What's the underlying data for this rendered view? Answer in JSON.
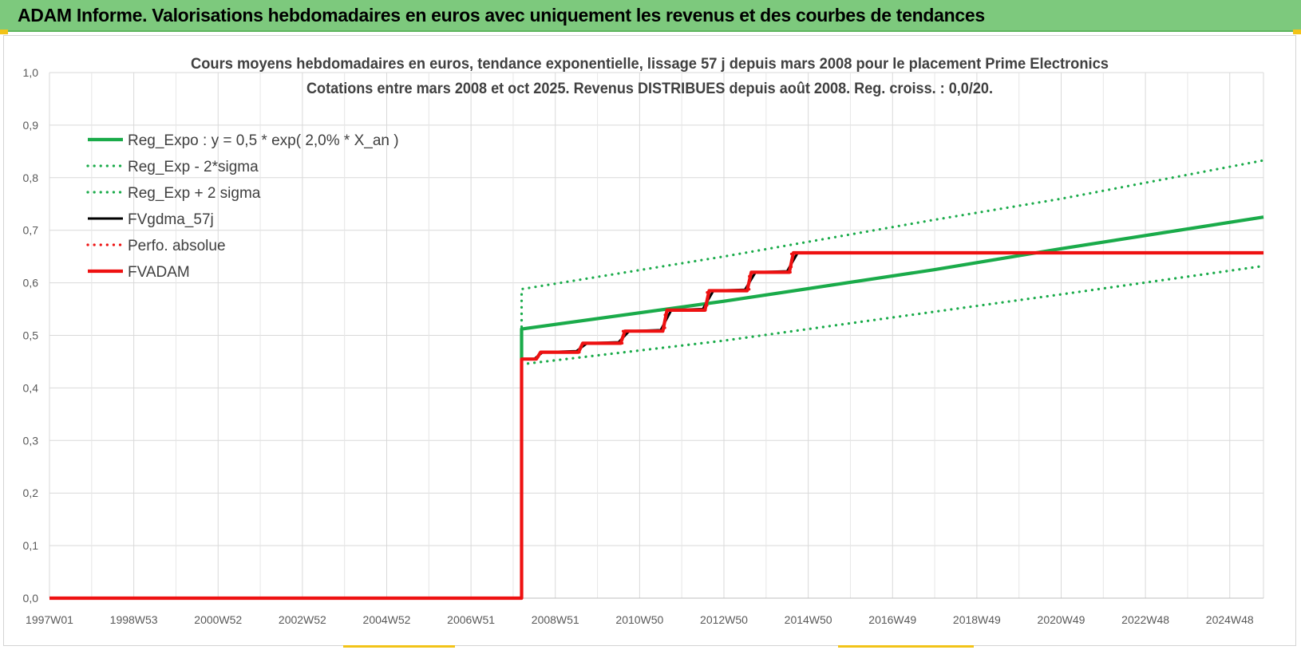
{
  "header": {
    "title": "ADAM Informe. Valorisations hebdomadaires en euros avec uniquement les revenus et des courbes de tendances"
  },
  "colors": {
    "header_bg": "#7dc97d",
    "green": "#1aab4a",
    "red": "#ee1111",
    "black": "#000000",
    "accent": "#f2c318"
  },
  "chart_data": {
    "type": "line",
    "title": "Cours moyens hebdomadaires en euros, tendance exponentielle, lissage 57 j depuis mars 2008 pour le placement Prime Electronics",
    "subtitle": "Cotations entre mars 2008 et oct 2025. Revenus DISTRIBUES depuis août 2008. Reg. croiss. : 0,0/20.",
    "xlabel": "",
    "ylabel": "",
    "x_tick_labels": [
      "1997W01",
      "1998W53",
      "2000W52",
      "2002W52",
      "2004W52",
      "2006W51",
      "2008W51",
      "2010W50",
      "2012W50",
      "2014W50",
      "2016W49",
      "2018W49",
      "2020W49",
      "2022W48",
      "2024W48"
    ],
    "x_tick_years": [
      1997.0,
      1999.0,
      2001.0,
      2003.0,
      2005.0,
      2007.0,
      2009.0,
      2011.0,
      2013.0,
      2015.0,
      2017.0,
      2019.0,
      2021.0,
      2023.0,
      2025.0
    ],
    "xlim": [
      1997.0,
      2025.8
    ],
    "ylim": [
      0.0,
      1.0
    ],
    "y_tick_labels": [
      "0,0",
      "0,1",
      "0,2",
      "0,3",
      "0,4",
      "0,5",
      "0,6",
      "0,7",
      "0,8",
      "0,9",
      "1,0"
    ],
    "y_tick_values": [
      0.0,
      0.1,
      0.2,
      0.3,
      0.4,
      0.5,
      0.6,
      0.7,
      0.8,
      0.9,
      1.0
    ],
    "grid": true,
    "legend_position": "top-left",
    "series": [
      {
        "name": "Reg_Expo : y = 0,5 * exp( 2,0% *  X_an )",
        "color": "#1aab4a",
        "style": "solid",
        "points": [
          [
            2008.2,
            0.455
          ],
          [
            2008.2,
            0.512
          ],
          [
            2013.0,
            0.565
          ],
          [
            2018.0,
            0.625
          ],
          [
            2021.0,
            0.665
          ],
          [
            2025.8,
            0.725
          ]
        ]
      },
      {
        "name": "Reg_Exp - 2*sigma",
        "color": "#1aab4a",
        "style": "dotted",
        "points": [
          [
            2008.2,
            0.445
          ],
          [
            2013.0,
            0.49
          ],
          [
            2018.0,
            0.545
          ],
          [
            2021.0,
            0.578
          ],
          [
            2025.8,
            0.632
          ]
        ]
      },
      {
        "name": "Reg_Exp + 2 sigma",
        "color": "#1aab4a",
        "style": "dotted",
        "points": [
          [
            2008.2,
            0.455
          ],
          [
            2008.2,
            0.588
          ],
          [
            2013.0,
            0.65
          ],
          [
            2018.0,
            0.72
          ],
          [
            2021.0,
            0.76
          ],
          [
            2025.8,
            0.833
          ]
        ]
      },
      {
        "name": "FVgdma_57j",
        "color": "#000000",
        "style": "solid",
        "points": [
          [
            2008.2,
            0.455
          ],
          [
            2008.5,
            0.455
          ],
          [
            2008.7,
            0.468
          ],
          [
            2009.5,
            0.47
          ],
          [
            2009.75,
            0.485
          ],
          [
            2010.5,
            0.487
          ],
          [
            2010.75,
            0.508
          ],
          [
            2011.5,
            0.51
          ],
          [
            2011.75,
            0.548
          ],
          [
            2012.5,
            0.55
          ],
          [
            2012.75,
            0.585
          ],
          [
            2013.5,
            0.587
          ],
          [
            2013.75,
            0.62
          ],
          [
            2014.5,
            0.622
          ],
          [
            2014.75,
            0.657
          ],
          [
            2025.8,
            0.657
          ]
        ]
      },
      {
        "name": "Perfo. absolue",
        "color": "#ee1111",
        "style": "dotted",
        "points": [
          [
            2008.2,
            0.455
          ],
          [
            2008.6,
            0.455
          ],
          [
            2008.6,
            0.468
          ],
          [
            2009.6,
            0.468
          ],
          [
            2009.6,
            0.485
          ],
          [
            2010.6,
            0.485
          ],
          [
            2010.6,
            0.508
          ],
          [
            2011.6,
            0.508
          ],
          [
            2011.6,
            0.548
          ],
          [
            2012.6,
            0.548
          ],
          [
            2012.6,
            0.585
          ],
          [
            2013.6,
            0.585
          ],
          [
            2013.6,
            0.62
          ],
          [
            2014.6,
            0.62
          ],
          [
            2014.6,
            0.657
          ],
          [
            2025.8,
            0.657
          ]
        ]
      },
      {
        "name": "FVADAM",
        "color": "#ee1111",
        "style": "solid",
        "points": [
          [
            1997.0,
            0.0
          ],
          [
            2008.2,
            0.0
          ],
          [
            2008.2,
            0.455
          ],
          [
            2008.55,
            0.455
          ],
          [
            2008.65,
            0.468
          ],
          [
            2009.55,
            0.468
          ],
          [
            2009.65,
            0.485
          ],
          [
            2010.55,
            0.485
          ],
          [
            2010.65,
            0.508
          ],
          [
            2011.55,
            0.508
          ],
          [
            2011.65,
            0.548
          ],
          [
            2012.55,
            0.548
          ],
          [
            2012.65,
            0.585
          ],
          [
            2013.55,
            0.585
          ],
          [
            2013.65,
            0.62
          ],
          [
            2014.55,
            0.62
          ],
          [
            2014.65,
            0.657
          ],
          [
            2025.8,
            0.657
          ]
        ]
      }
    ]
  }
}
